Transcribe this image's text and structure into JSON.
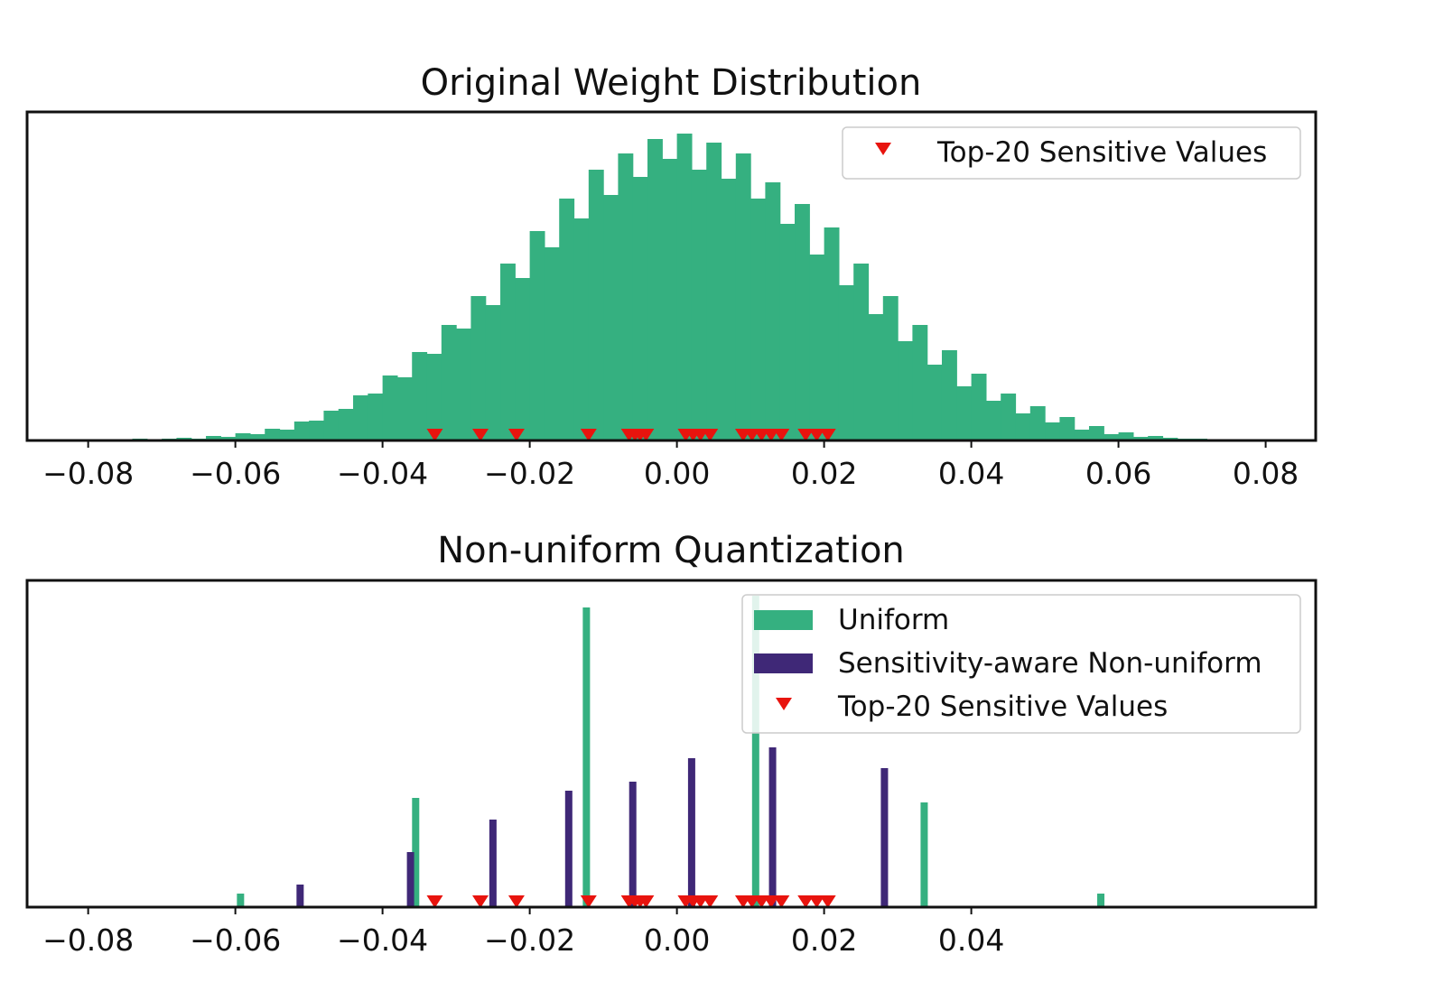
{
  "chart_data": [
    {
      "type": "bar",
      "subtype": "histogram",
      "title": "Original Weight Distribution",
      "xlabel": "",
      "ylabel": "",
      "xlim": [
        -0.0883,
        0.0868
      ],
      "ylim": [
        0,
        364
      ],
      "xticks": [
        "−0.08",
        "−0.06",
        "−0.04",
        "−0.02",
        "0.00",
        "0.02",
        "0.04",
        "0.06",
        "0.08"
      ],
      "xtick_values": [
        -0.08,
        -0.06,
        -0.04,
        -0.02,
        0.0,
        0.02,
        0.04,
        0.06,
        0.08
      ],
      "bin_start": -0.08,
      "bin_width": 0.002,
      "counts": [
        0,
        1,
        0,
        2,
        1,
        2,
        3,
        2,
        5,
        4,
        8,
        7,
        13,
        12,
        21,
        22,
        33,
        35,
        50,
        52,
        72,
        70,
        98,
        96,
        128,
        124,
        160,
        150,
        196,
        180,
        232,
        214,
        268,
        246,
        300,
        272,
        318,
        292,
        334,
        312,
        340,
        300,
        330,
        290,
        318,
        268,
        286,
        240,
        262,
        206,
        236,
        172,
        196,
        140,
        160,
        110,
        128,
        84,
        100,
        60,
        74,
        44,
        52,
        30,
        38,
        20,
        26,
        12,
        16,
        7,
        9,
        4,
        5,
        3,
        2,
        2,
        1,
        1
      ],
      "color": "#35b080",
      "legend": {
        "placement": "upper right",
        "entries": [
          {
            "label": "Top-20 Sensitive Values",
            "marker": "triangle-down",
            "color": "#e8140e"
          }
        ]
      },
      "sensitive_values": [
        -0.0329,
        -0.0267,
        -0.0218,
        -0.012,
        -0.0065,
        -0.0057,
        -0.005,
        -0.0042,
        0.0012,
        0.0022,
        0.0032,
        0.0045,
        0.009,
        0.0102,
        0.0115,
        0.0128,
        0.0142,
        0.0175,
        0.019,
        0.0205
      ]
    },
    {
      "type": "bar",
      "title": "Non-uniform Quantization",
      "xlabel": "",
      "ylabel": "",
      "xlim": [
        -0.0883,
        0.0868
      ],
      "ylim": [
        0,
        362
      ],
      "xticks": [
        "−0.08",
        "−0.06",
        "−0.04",
        "−0.02",
        "0.00",
        "0.02",
        "0.04"
      ],
      "xtick_values": [
        -0.08,
        -0.06,
        -0.04,
        -0.02,
        0.0,
        0.02,
        0.04
      ],
      "series": [
        {
          "name": "Uniform",
          "color": "#35b080",
          "x": [
            -0.0593,
            -0.0355,
            -0.0123,
            0.0107,
            0.0336,
            0.0576
          ],
          "values": [
            15,
            121,
            332,
            345,
            116,
            15
          ]
        },
        {
          "name": "Sensitivity-aware Non-uniform",
          "color": "#3f2877",
          "x": [
            -0.0512,
            -0.0362,
            -0.025,
            -0.0147,
            -0.006,
            0.002,
            0.013,
            0.0282
          ],
          "values": [
            25,
            61,
            97,
            129,
            139,
            165,
            177,
            154
          ]
        }
      ],
      "legend": {
        "placement": "upper right",
        "entries": [
          {
            "label": "Uniform",
            "marker": "patch",
            "color": "#35b080"
          },
          {
            "label": "Sensitivity-aware Non-uniform",
            "marker": "patch",
            "color": "#3f2877"
          },
          {
            "label": "Top-20 Sensitive Values",
            "marker": "triangle-down",
            "color": "#e8140e"
          }
        ]
      },
      "sensitive_values": [
        -0.0329,
        -0.0267,
        -0.0218,
        -0.012,
        -0.0065,
        -0.0057,
        -0.005,
        -0.0042,
        0.0012,
        0.0022,
        0.0032,
        0.0045,
        0.009,
        0.0102,
        0.0115,
        0.0128,
        0.0142,
        0.0175,
        0.019,
        0.0205
      ]
    }
  ]
}
